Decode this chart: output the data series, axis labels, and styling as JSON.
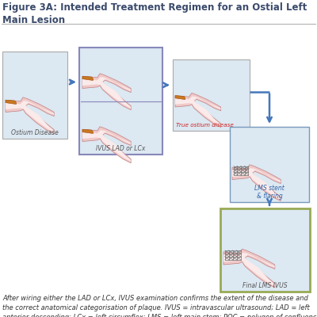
{
  "title": "Figure 3A: Intended Treatment Regimen for an Ostial Left\nMain Lesion",
  "title_fontsize": 8.5,
  "title_color": "#3a4a6b",
  "bg_color": "#ffffff",
  "caption": "After wiring either the LAD or LCx, IVUS examination confirms the extent of the disease and\nthe correct anatomical categorisation of plaque. IVUS = intravascular ultrasound; LAD = left\nanterior descending; LCx = left circumflex; LMS = left main stem; POC = polygon of confluence.",
  "caption_fontsize": 6.0,
  "vessel_fill": "#f0c8c8",
  "vessel_lumen": "#faeaea",
  "vessel_edge": "#c08080",
  "plaque_fill": "#c87820",
  "plaque_edge": "#a05010",
  "stent_color": "#707070",
  "box_bg": "#dce8f2",
  "box1_border": "#aaaaaa",
  "box2_border": "#8888bb",
  "box3_border": "#aaaaaa",
  "box4_border": "#7799bb",
  "box5_border": "#99aa55",
  "arrow_color": "#4477bb",
  "label_ostium": "Ostium Disease",
  "label_ivus": "IVUS LAD or LCx",
  "label_true": "True ostium disease",
  "label_lms": "LMS stent\n& flaring",
  "label_final": "Final LMS IVUS",
  "label_color_default": "#555555",
  "label_color_red": "#cc2222",
  "label_color_blue": "#3366aa"
}
